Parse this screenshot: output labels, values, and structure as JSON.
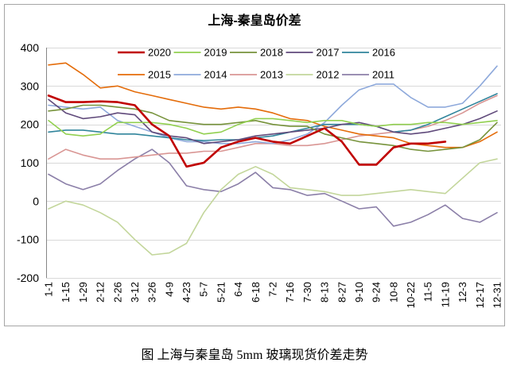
{
  "chart_data": {
    "type": "line",
    "title": "上海-秦皇岛价差",
    "xlabel": "",
    "ylabel": "",
    "ylim": [
      -200,
      400
    ],
    "yticks": [
      -200,
      -100,
      0,
      100,
      200,
      300,
      400
    ],
    "grid": true,
    "legend": "top",
    "categories": [
      "1-1",
      "1-15",
      "1-29",
      "2-12",
      "2-26",
      "3-12",
      "3-26",
      "4-9",
      "4-23",
      "5-7",
      "5-21",
      "6-4",
      "6-18",
      "7-2",
      "7-16",
      "7-30",
      "8-13",
      "8-27",
      "9-10",
      "9-24",
      "10-8",
      "10-22",
      "11-5",
      "11-19",
      "12-3",
      "12-17",
      "12-31"
    ],
    "series": [
      {
        "name": "2020",
        "color": "#c00000",
        "values": [
          275,
          258,
          258,
          260,
          258,
          250,
          200,
          170,
          90,
          100,
          140,
          155,
          165,
          155,
          150,
          170,
          190,
          155,
          95,
          95,
          140,
          150,
          150,
          155,
          null,
          null,
          null
        ]
      },
      {
        "name": "2019",
        "color": "#92d050",
        "values": [
          210,
          175,
          170,
          175,
          205,
          205,
          205,
          200,
          190,
          175,
          180,
          200,
          215,
          215,
          210,
          205,
          210,
          210,
          200,
          195,
          200,
          200,
          205,
          205,
          200,
          205,
          210
        ]
      },
      {
        "name": "2018",
        "color": "#77933c",
        "values": [
          235,
          240,
          250,
          250,
          245,
          240,
          230,
          210,
          205,
          200,
          200,
          205,
          210,
          200,
          195,
          195,
          175,
          165,
          155,
          150,
          145,
          135,
          130,
          135,
          140,
          160,
          205
        ]
      },
      {
        "name": "2017",
        "color": "#604a7b",
        "values": [
          265,
          230,
          215,
          220,
          230,
          225,
          180,
          170,
          165,
          150,
          155,
          160,
          170,
          175,
          180,
          185,
          190,
          200,
          205,
          195,
          180,
          175,
          180,
          190,
          200,
          215,
          235
        ]
      },
      {
        "name": "2016",
        "color": "#31859c",
        "values": [
          180,
          185,
          185,
          180,
          175,
          175,
          170,
          165,
          160,
          158,
          160,
          160,
          165,
          170,
          180,
          190,
          200,
          200,
          200,
          195,
          180,
          185,
          200,
          220,
          240,
          260,
          280
        ]
      },
      {
        "name": "2015",
        "color": "#e46c0a",
        "values": [
          355,
          360,
          330,
          295,
          300,
          285,
          275,
          265,
          255,
          245,
          240,
          245,
          240,
          230,
          215,
          210,
          195,
          185,
          175,
          170,
          165,
          150,
          145,
          140,
          140,
          155,
          180
        ]
      },
      {
        "name": "2014",
        "color": "#8ea9db",
        "values": [
          250,
          245,
          240,
          245,
          210,
          195,
          180,
          165,
          155,
          155,
          150,
          150,
          155,
          150,
          160,
          175,
          205,
          250,
          290,
          305,
          305,
          270,
          245,
          245,
          255,
          300,
          352
        ]
      },
      {
        "name": "2013",
        "color": "#d99694",
        "values": [
          110,
          135,
          120,
          110,
          110,
          115,
          120,
          125,
          125,
          130,
          130,
          140,
          150,
          150,
          145,
          145,
          150,
          160,
          170,
          175,
          180,
          185,
          195,
          210,
          230,
          255,
          275
        ]
      },
      {
        "name": "2012",
        "color": "#c3d69b",
        "values": [
          -20,
          0,
          -10,
          -30,
          -55,
          -100,
          -140,
          -135,
          -110,
          -30,
          30,
          70,
          90,
          70,
          35,
          30,
          25,
          15,
          15,
          20,
          25,
          30,
          25,
          20,
          60,
          100,
          110
        ]
      },
      {
        "name": "2011",
        "color": "#8b7fa8",
        "values": [
          70,
          45,
          30,
          45,
          80,
          110,
          135,
          100,
          40,
          30,
          25,
          45,
          75,
          35,
          30,
          15,
          20,
          0,
          -20,
          -15,
          -65,
          -55,
          -35,
          -10,
          -45,
          -55,
          -30
        ]
      }
    ]
  },
  "caption": "图 上海与秦皇岛 5mm 玻璃现货价差走势"
}
